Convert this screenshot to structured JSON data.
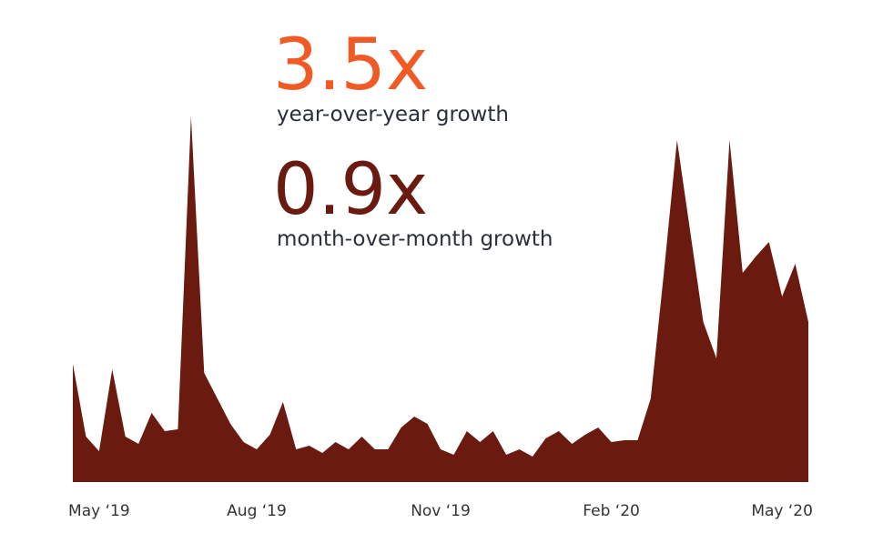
{
  "chart_data": {
    "type": "area",
    "annotations": [
      {
        "value": "3.5x",
        "label": "year-over-year growth",
        "color": "#f15a24"
      },
      {
        "value": "0.9x",
        "label": "month-over-month growth",
        "color": "#6b1a10"
      }
    ],
    "categories": [
      null,
      null,
      "May ‘19",
      null,
      null,
      null,
      null,
      null,
      null,
      null,
      null,
      null,
      null,
      null,
      "Aug ‘19",
      null,
      null,
      null,
      null,
      null,
      null,
      null,
      null,
      null,
      null,
      null,
      null,
      null,
      "Nov ‘19",
      null,
      null,
      null,
      null,
      null,
      null,
      null,
      null,
      null,
      null,
      null,
      null,
      "Feb ‘20",
      null,
      null,
      null,
      null,
      null,
      null,
      null,
      null,
      null,
      null,
      null,
      null,
      "May ‘20",
      null,
      null
    ],
    "values": [
      32.5,
      12.5,
      8.5,
      31,
      12.5,
      10.5,
      19,
      14,
      14.5,
      100.5,
      30,
      23,
      16,
      11,
      9,
      13,
      22,
      9,
      10,
      8,
      11,
      9,
      12.5,
      9,
      9,
      15,
      18,
      16,
      9,
      7.5,
      14,
      11,
      14,
      7.5,
      9,
      7,
      12,
      14,
      10.5,
      13,
      15,
      11,
      11.5,
      11.5,
      23,
      57.5,
      94,
      69,
      44,
      34,
      94,
      57.5,
      62,
      66,
      51,
      60,
      44
    ],
    "color": "#6b1a10",
    "ylim": [
      0,
      101
    ]
  }
}
